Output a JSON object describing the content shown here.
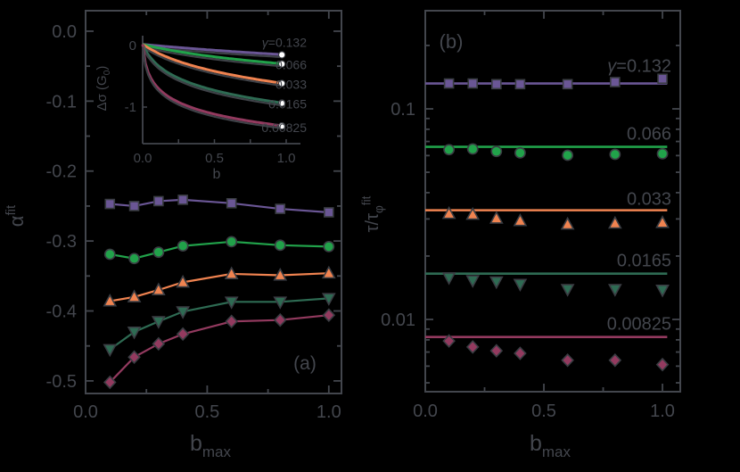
{
  "figure": {
    "background": "#000000",
    "foreground": "#43464d",
    "marker_edge": "#3a3d43",
    "fit_dark": "#3f4248",
    "white_marker": "#ffffff",
    "series_colors": {
      "g0132": "#6a5695",
      "g0066": "#21a24a",
      "g0033": "#f08350",
      "g00165": "#2e6b53",
      "g000825": "#933a5f"
    }
  },
  "chart_data": [
    {
      "id": "panel_a",
      "type": "line",
      "panel_label": "(a)",
      "xlabel_parts": [
        {
          "t": "b"
        },
        {
          "t": "max",
          "s": "sub"
        }
      ],
      "ylabel_parts": [
        {
          "t": "α"
        },
        {
          "t": "fit",
          "s": "sup"
        }
      ],
      "xlim": [
        0,
        1.052
      ],
      "ylim": [
        -0.518,
        0.0293
      ],
      "x_major": [
        0,
        0.5,
        1.0
      ],
      "x_major_labels": [
        "0.0",
        "0.5",
        "1.0"
      ],
      "x_minor": [
        0.25,
        0.75
      ],
      "y_major": [
        0,
        -0.1,
        -0.2,
        -0.3,
        -0.4,
        -0.5
      ],
      "y_major_labels": [
        "0.0",
        "-0.1",
        "-0.2",
        "-0.3",
        "-0.4",
        "-0.5"
      ],
      "y_minor": [
        -0.05,
        -0.15,
        -0.25,
        -0.35,
        -0.45
      ],
      "x": [
        0.1,
        0.2,
        0.3,
        0.4,
        0.6,
        0.8,
        1.0
      ],
      "series": [
        {
          "name": "gamma=0.132",
          "marker": "square",
          "color_key": "g0132",
          "values": [
            -0.247,
            -0.25,
            -0.243,
            -0.241,
            -0.246,
            -0.254,
            -0.259
          ]
        },
        {
          "name": "gamma=0.066",
          "marker": "circle",
          "color_key": "g0066",
          "values": [
            -0.319,
            -0.325,
            -0.316,
            -0.307,
            -0.301,
            -0.306,
            -0.308
          ]
        },
        {
          "name": "gamma=0.033",
          "marker": "triangle-up",
          "color_key": "g0033",
          "values": [
            -0.386,
            -0.38,
            -0.37,
            -0.359,
            -0.347,
            -0.349,
            -0.346
          ]
        },
        {
          "name": "gamma=0.0165",
          "marker": "triangle-down",
          "color_key": "g00165",
          "values": [
            -0.455,
            -0.43,
            -0.415,
            -0.401,
            -0.387,
            -0.387,
            -0.382
          ]
        },
        {
          "name": "gamma=0.00825",
          "marker": "diamond",
          "color_key": "g000825",
          "values": [
            -0.502,
            -0.466,
            -0.447,
            -0.433,
            -0.415,
            -0.413,
            -0.406
          ]
        }
      ]
    },
    {
      "id": "inset",
      "type": "line",
      "xlabel_parts": [
        {
          "t": "b"
        }
      ],
      "ylabel_parts": [
        {
          "t": "Δσ (G"
        },
        {
          "t": "0",
          "s": "sub"
        },
        {
          "t": ")"
        }
      ],
      "xlim": [
        0,
        1.1
      ],
      "ylim": [
        -1.59,
        0.16
      ],
      "x_ticks": [
        0.25,
        0.5,
        0.75,
        1.0
      ],
      "x_label_pos": [
        0,
        0.5,
        1.0
      ],
      "x_labels": [
        "0.0",
        "0.5",
        "1.0"
      ],
      "y_ticks": [
        0,
        -1
      ],
      "y_tick_labels": [
        "0",
        "-1"
      ],
      "curve_end_b": 0.97,
      "curves": [
        {
          "label_parts": [
            {
              "t": "γ",
              "s": "i"
            },
            {
              "t": "=0.132"
            }
          ],
          "color_key": "g0132",
          "end": -0.17,
          "curvature": 1.5
        },
        {
          "label_parts": [
            {
              "t": "0.066"
            }
          ],
          "color_key": "g0066",
          "end": -0.32,
          "curvature": 0.5
        },
        {
          "label_parts": [
            {
              "t": "0.033"
            }
          ],
          "color_key": "g0033",
          "end": -0.64,
          "curvature": 0.25
        },
        {
          "label_parts": [
            {
              "t": "0.0165"
            }
          ],
          "color_key": "g00165",
          "end": -0.96,
          "curvature": 0.06
        },
        {
          "label_parts": [
            {
              "t": "0.00825"
            }
          ],
          "color_key": "g000825",
          "end": -1.33,
          "curvature": 0.01
        }
      ]
    },
    {
      "id": "panel_b",
      "type": "scatter",
      "yscale": "log",
      "panel_label": "(b)",
      "xlabel_parts": [
        {
          "t": "b"
        },
        {
          "t": "max",
          "s": "sub"
        }
      ],
      "ylabel_parts": [
        {
          "t": "τ/τ"
        },
        {
          "t": "φ",
          "s": "sub"
        },
        {
          "t": "fit",
          "s": "sup"
        }
      ],
      "xlim": [
        0,
        1.075
      ],
      "ylim": [
        0.00454,
        0.2924
      ],
      "x_major": [
        0,
        0.5,
        1.0
      ],
      "x_major_labels": [
        "0.0",
        "0.5",
        "1.0"
      ],
      "x_minor": [
        0.25,
        0.75
      ],
      "y_major": [
        0.1,
        0.01
      ],
      "y_major_labels": [
        "0.1",
        "0.01"
      ],
      "y_minor": [
        0.2,
        0.09,
        0.08,
        0.07,
        0.06,
        0.05,
        0.04,
        0.03,
        0.02,
        0.009,
        0.008,
        0.007,
        0.006,
        0.005
      ],
      "x": [
        0.1,
        0.2,
        0.3,
        0.4,
        0.6,
        0.8,
        1.0
      ],
      "series": [
        {
          "label_parts": [
            {
              "t": "γ",
              "s": "i"
            },
            {
              "t": "=0.132"
            }
          ],
          "marker": "square",
          "color_key": "g0132",
          "fit_value": 0.132,
          "values": [
            0.132,
            0.132,
            0.131,
            0.131,
            0.131,
            0.134,
            0.139
          ]
        },
        {
          "label_parts": [
            {
              "t": "0.066"
            }
          ],
          "marker": "circle",
          "color_key": "g0066",
          "fit_value": 0.066,
          "values": [
            0.064,
            0.0645,
            0.0628,
            0.0618,
            0.0602,
            0.0608,
            0.0612
          ]
        },
        {
          "label_parts": [
            {
              "t": "0.033"
            }
          ],
          "marker": "triangle-up",
          "color_key": "g0033",
          "fit_value": 0.033,
          "values": [
            0.0318,
            0.0315,
            0.0302,
            0.0294,
            0.0283,
            0.0286,
            0.0288
          ]
        },
        {
          "label_parts": [
            {
              "t": "0.0165"
            }
          ],
          "marker": "triangle-down",
          "color_key": "g00165",
          "fit_value": 0.0165,
          "values": [
            0.0158,
            0.0153,
            0.0151,
            0.0147,
            0.0139,
            0.0139,
            0.0138
          ]
        },
        {
          "label_parts": [
            {
              "t": "0.00825"
            }
          ],
          "marker": "diamond",
          "color_key": "g000825",
          "fit_value": 0.00825,
          "values": [
            0.0079,
            0.0074,
            0.0071,
            0.0069,
            0.0064,
            0.0064,
            0.0061
          ]
        }
      ]
    }
  ]
}
